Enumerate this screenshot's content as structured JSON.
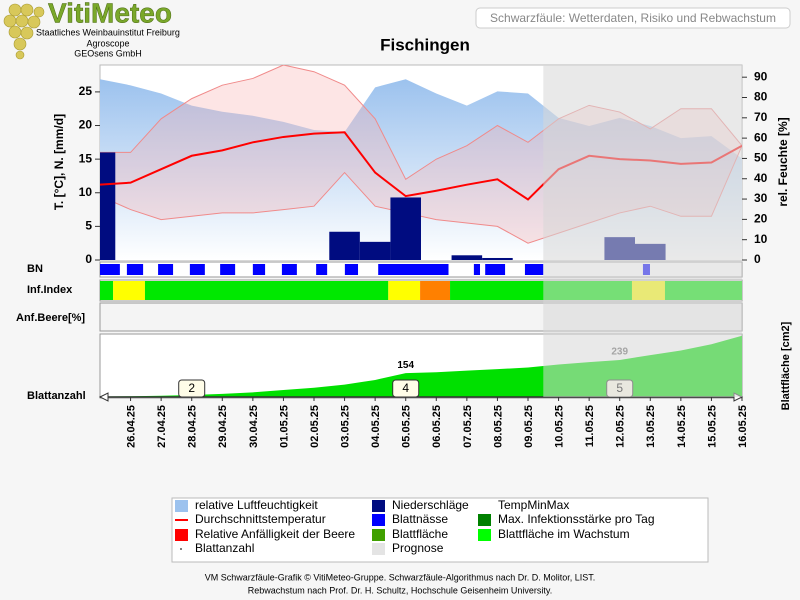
{
  "header": {
    "logo": "VitiMeteo",
    "org_lines": [
      "Staatliches Weinbauinstitut Freiburg",
      "Agroscope",
      "GEOsens GmbH"
    ],
    "subject": "Schwarzfäule: Wetterdaten, Risiko und Rebwachstum"
  },
  "chart_data": {
    "type": "combo",
    "title": "Fischingen",
    "y_label": "T. [°C], N. [mm/d]",
    "y2_label": "rel. Feuchte [%]",
    "categories": [
      null,
      "26.04.25",
      "27.04.25",
      "28.04.25",
      "29.04.25",
      "30.04.25",
      "01.05.25",
      "02.05.25",
      "03.05.25",
      "04.05.25",
      "05.05.25",
      "06.05.25",
      "07.05.25",
      "08.05.25",
      "09.05.25",
      "10.05.25",
      "11.05.25",
      "12.05.25",
      "13.05.25",
      "14.05.25",
      "15.05.25",
      "16.05.25"
    ],
    "ylim": [
      0,
      29
    ],
    "yticks": [
      0,
      5,
      10,
      15,
      20,
      25
    ],
    "y2lim": [
      0,
      96
    ],
    "y2ticks": [
      0,
      10,
      20,
      30,
      40,
      50,
      60,
      70,
      80,
      90
    ],
    "prognose_start": 14.5,
    "humidity": {
      "color": "#9cc2ee",
      "axis": "y2",
      "values": [
        89,
        86,
        82,
        76,
        73,
        71,
        68,
        64,
        63,
        85,
        89,
        82,
        76,
        83,
        82,
        70,
        66,
        70,
        66,
        60,
        61,
        50
      ]
    },
    "temp_max": {
      "color": "#f08a8a",
      "values": [
        16,
        16,
        21,
        24,
        26,
        27,
        29,
        28,
        26,
        21,
        12,
        15,
        17,
        20,
        17.5,
        21,
        23,
        22,
        19.5,
        22.5,
        22.5,
        17
      ]
    },
    "temp_min": {
      "color": "#f08a8a",
      "values": [
        9.5,
        7.5,
        6,
        6.5,
        7,
        7,
        7.5,
        8,
        13,
        8,
        7,
        6,
        5.5,
        5,
        2.5,
        4,
        5.5,
        7,
        8,
        6.5,
        6.5,
        17
      ]
    },
    "precipitation": {
      "color": "#000c80",
      "values": [
        16,
        0,
        0,
        0,
        0,
        0,
        0,
        0,
        4.2,
        2.7,
        9.3,
        0,
        0.7,
        0.3,
        0,
        0,
        0,
        3.4,
        2.4,
        0,
        0,
        0
      ]
    },
    "temperature": {
      "color": "#ff0000",
      "values": [
        11.2,
        11.5,
        13.5,
        15.5,
        16.3,
        17.5,
        18.3,
        18.8,
        19,
        13,
        9.5,
        10.3,
        11.2,
        12,
        9,
        13.5,
        15.5,
        15,
        14.8,
        14.3,
        14.5,
        17
      ]
    },
    "row_labels": {
      "bn": "BN",
      "inf": "Inf.Index",
      "berry": "Anf.Beere[%]",
      "leaves": "Blattanzahl"
    },
    "leaf_wetness": {
      "color": "#0000ff",
      "intervals": [
        [
          0,
          0.65
        ],
        [
          0.88,
          1.41
        ],
        [
          1.9,
          2.39
        ],
        [
          2.94,
          3.43
        ],
        [
          3.93,
          4.42
        ],
        [
          5.0,
          5.4
        ],
        [
          5.95,
          6.44
        ],
        [
          7.07,
          7.43
        ],
        [
          8.01,
          8.44
        ],
        [
          9.1,
          11.4
        ],
        [
          12.23,
          12.43
        ],
        [
          12.6,
          13.25
        ],
        [
          13.9,
          14.5
        ],
        [
          17.76,
          17.99
        ]
      ]
    },
    "infection_index": {
      "level_colors": [
        "#00e800",
        "#ffff00",
        "#ff8000"
      ],
      "segments": [
        [
          0,
          0.43,
          0
        ],
        [
          0.43,
          1.47,
          1
        ],
        [
          1.47,
          9.43,
          0
        ],
        [
          9.43,
          10.47,
          1
        ],
        [
          10.47,
          11.45,
          2
        ],
        [
          11.45,
          21,
          0
        ],
        [
          17.4,
          18.48,
          1
        ]
      ]
    },
    "leaf_area": {
      "label": "Blattfläche [cm2]",
      "color": "#00e000",
      "ylim": [
        0,
        400
      ],
      "values": [
        3,
        5,
        8,
        13,
        20,
        30,
        45,
        60,
        80,
        110,
        154,
        160,
        170,
        180,
        190,
        210,
        225,
        239,
        270,
        300,
        340,
        395
      ]
    },
    "leaf_count": [
      {
        "date": "28.04.25",
        "value": 2
      },
      {
        "date": "05.05.25",
        "value": 4
      },
      {
        "date": "12.05.25",
        "value": 5
      }
    ],
    "legend": [
      {
        "name": "relative Luftfeuchtigkeit",
        "color": "#9cc2ee",
        "marker": "square"
      },
      {
        "name": "Durchschnittstemperatur",
        "color": "#ff0000",
        "marker": "line"
      },
      {
        "name": "Relative Anfälligkeit der Beere",
        "color": "#ff0000",
        "marker": "square"
      },
      {
        "name": "Blattanzahl",
        "color": "#555555",
        "marker": "dot"
      },
      {
        "name": "Niederschläge",
        "color": "#000c80",
        "marker": "square"
      },
      {
        "name": "Blattnässe",
        "color": "#0000ff",
        "marker": "square"
      },
      {
        "name": "Blattfläche",
        "color": "#40a000",
        "marker": "square"
      },
      {
        "name": "Prognose",
        "color": "#e4e4e4",
        "marker": "square"
      },
      {
        "name": "TempMinMax",
        "color": "#fde8e8",
        "marker": "none"
      },
      {
        "name": "Max. Infektionsstärke pro Tag",
        "color": "#008000",
        "marker": "square"
      },
      {
        "name": "Blattfläche im Wachstum",
        "color": "#00ff00",
        "marker": "square"
      }
    ]
  },
  "footer": [
    "VM Schwarzfäule-Grafik © VitiMeteo-Gruppe. Schwarzfäule-Algorithmus nach Dr. D. Molitor, LIST.",
    "Rebwachstum nach Prof. Dr. H. Schultz, Hochschule Geisenheim University."
  ]
}
